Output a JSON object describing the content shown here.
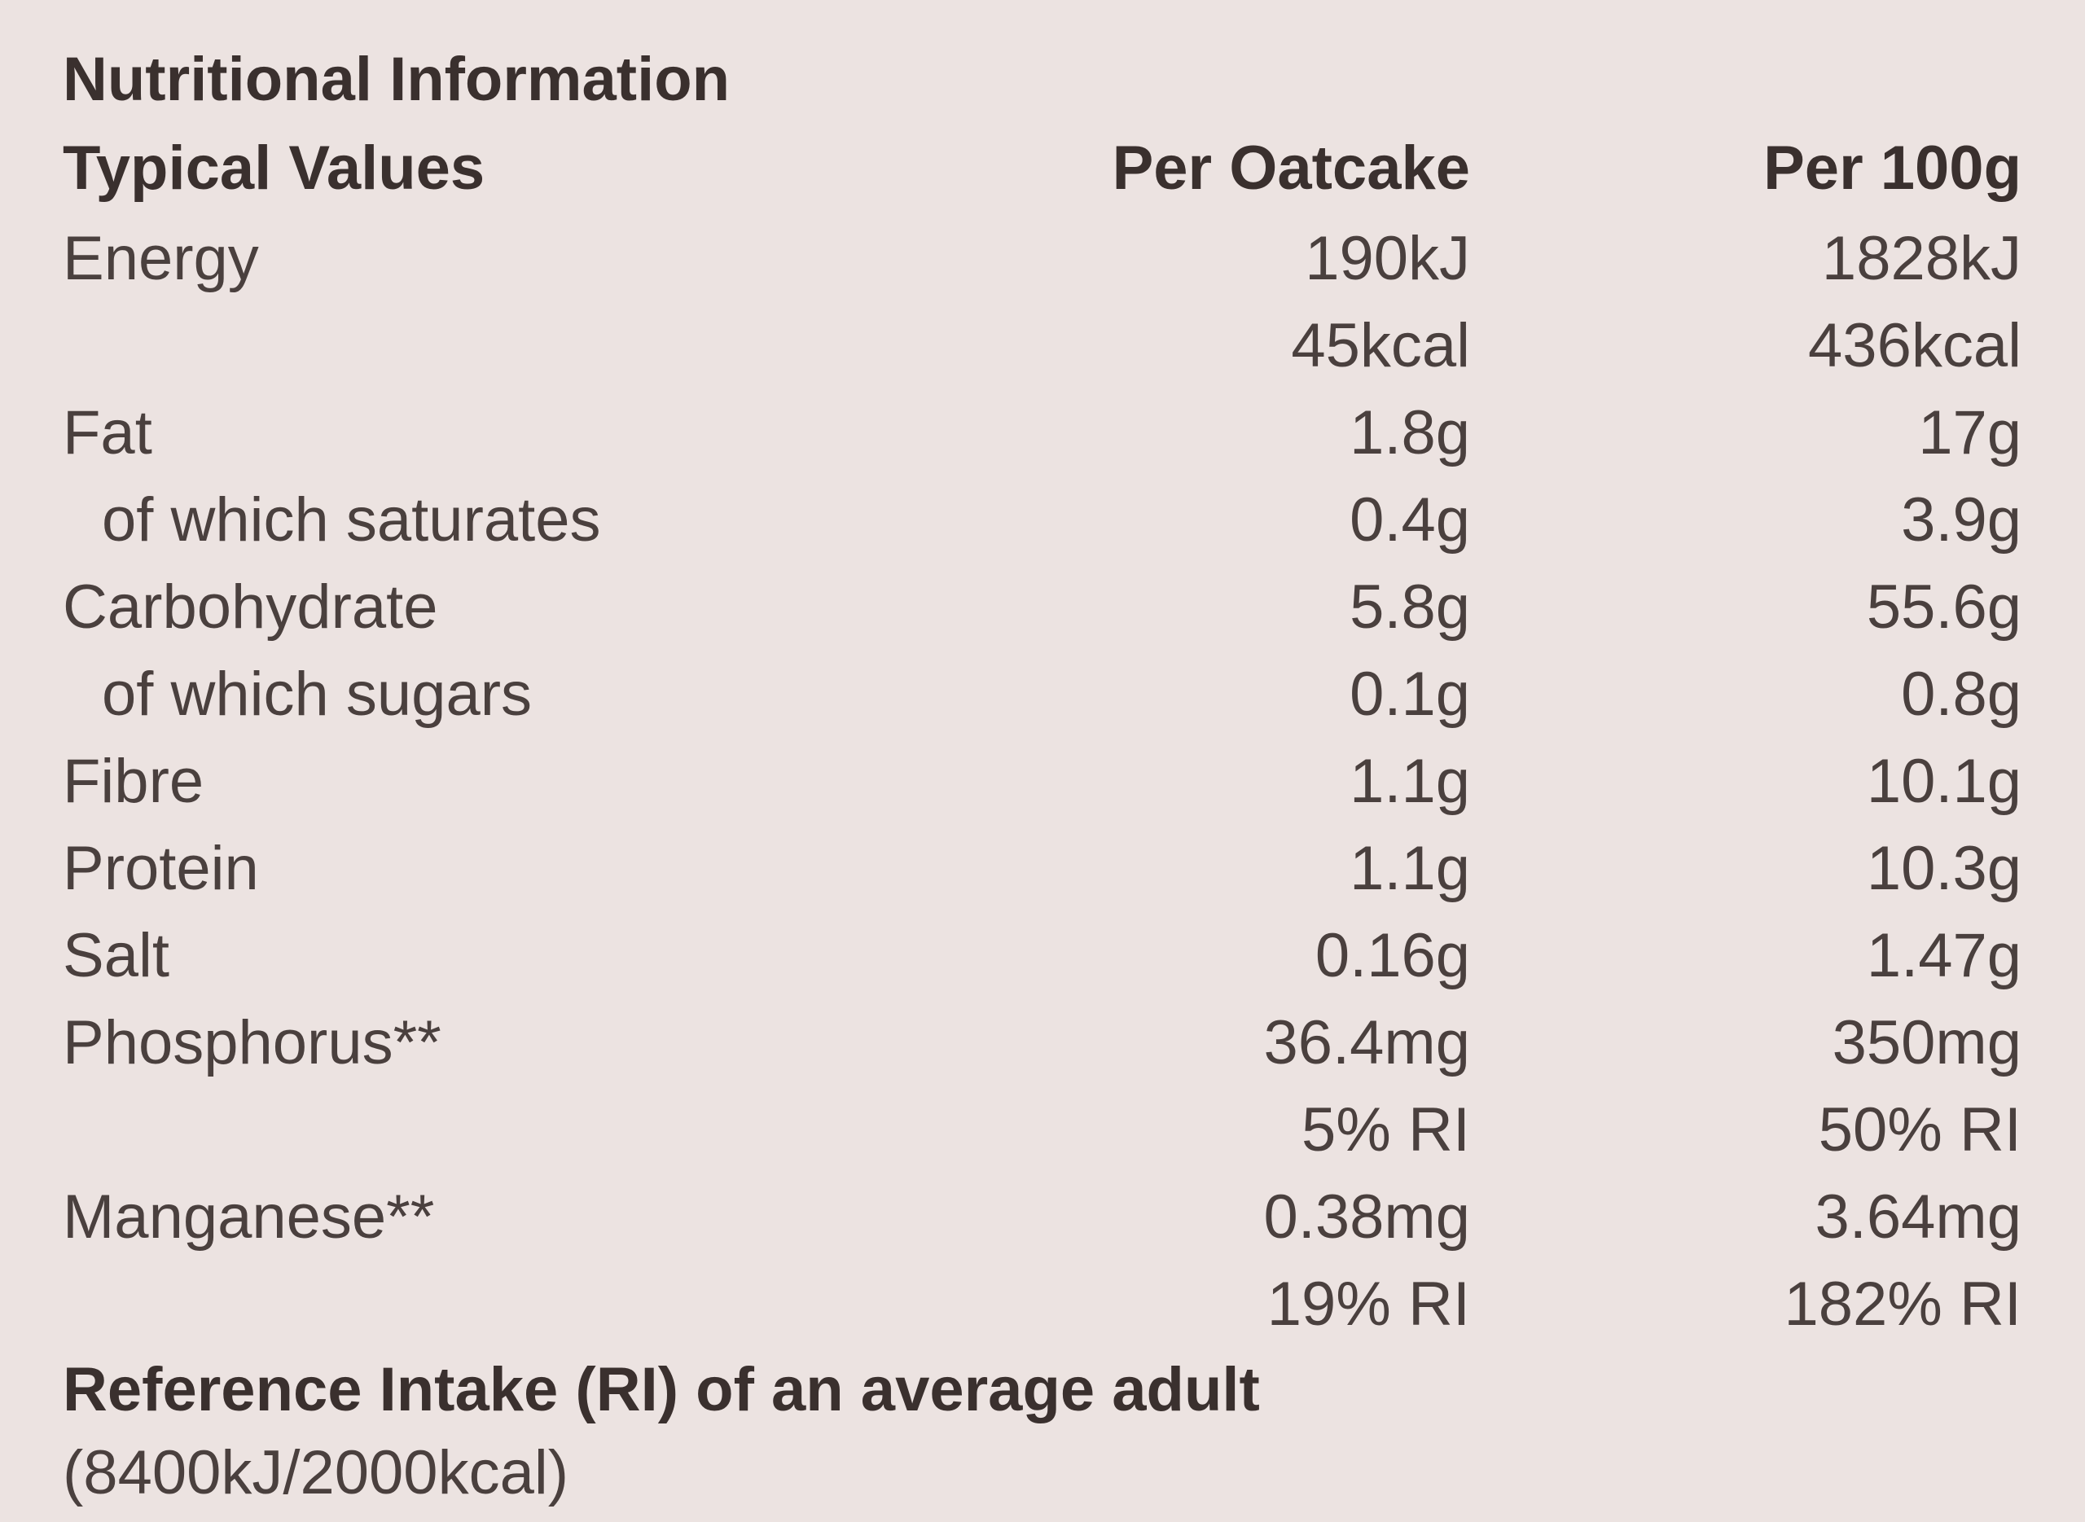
{
  "title": "Nutritional Information",
  "header": {
    "label": "Typical Values",
    "per_oatcake": "Per Oatcake",
    "per_100g": "Per 100g"
  },
  "rows": [
    {
      "label": "Energy",
      "per_oatcake": "190kJ",
      "per_100g": "1828kJ"
    },
    {
      "per_oatcake": "45kcal",
      "per_100g": "436kcal"
    },
    {
      "label": "Fat",
      "per_oatcake": "1.8g",
      "per_100g": "17g"
    },
    {
      "label": "of which saturates",
      "indent": true,
      "per_oatcake": "0.4g",
      "per_100g": "3.9g"
    },
    {
      "label": "Carbohydrate",
      "per_oatcake": "5.8g",
      "per_100g": "55.6g"
    },
    {
      "label": "of which sugars",
      "indent": true,
      "per_oatcake": "0.1g",
      "per_100g": "0.8g"
    },
    {
      "label": "Fibre",
      "per_oatcake": "1.1g",
      "per_100g": "10.1g"
    },
    {
      "label": "Protein",
      "per_oatcake": "1.1g",
      "per_100g": "10.3g"
    },
    {
      "label": "Salt",
      "per_oatcake": "0.16g",
      "per_100g": "1.47g"
    },
    {
      "label": "Phosphorus**",
      "per_oatcake": "36.4mg",
      "per_100g": "350mg"
    },
    {
      "per_oatcake": "5% RI",
      "per_100g": "50% RI"
    },
    {
      "label": "Manganese**",
      "per_oatcake": "0.38mg",
      "per_100g": "3.64mg"
    },
    {
      "per_oatcake": "19% RI",
      "per_100g": "182% RI"
    }
  ],
  "footer": {
    "title": "Reference Intake (RI) of an average adult",
    "note": "(8400kJ/2000kcal)"
  }
}
